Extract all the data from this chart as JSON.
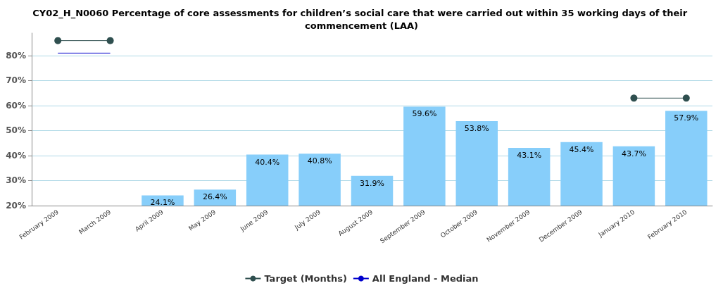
{
  "chart_data": {
    "type": "bar",
    "title": "CY02_H_N0060 Percentage of core assessments for children’s social care that were carried out within 35 working days of their commencement (LAA)",
    "categories": [
      "February 2009",
      "March 2009",
      "April 2009",
      "May 2009",
      "June 2009",
      "July 2009",
      "August 2009",
      "September 2009",
      "October 2009",
      "November 2009",
      "December 2009",
      "January 2010",
      "February 2010"
    ],
    "series": [
      {
        "color": "#87cefa",
        "values": [
          null,
          null,
          24.1,
          26.4,
          40.4,
          40.8,
          31.9,
          59.6,
          53.8,
          43.1,
          45.4,
          43.7,
          57.9
        ],
        "value_labels": [
          null,
          null,
          "24.1%",
          "26.4%",
          "40.4%",
          "40.8%",
          "31.9%",
          "59.6%",
          "53.8%",
          "43.1%",
          "45.4%",
          "43.7%",
          "57.9%"
        ]
      },
      {
        "type": "line",
        "name": "Target (Months)",
        "color": "#2f4f4f",
        "marker": "circle",
        "values": [
          86,
          86,
          null,
          null,
          null,
          null,
          null,
          null,
          null,
          null,
          null,
          63,
          63
        ]
      },
      {
        "type": "line",
        "name": "All England - Median",
        "color": "#0000cd",
        "marker": "none",
        "values": [
          81,
          81,
          null,
          null,
          null,
          null,
          null,
          null,
          null,
          null,
          null,
          null,
          null
        ]
      }
    ],
    "ylim": [
      20,
      89
    ],
    "yticks": [
      {
        "value": 20,
        "label": "20%"
      },
      {
        "value": 30,
        "label": "30%"
      },
      {
        "value": 40,
        "label": "40%"
      },
      {
        "value": 50,
        "label": "50%"
      },
      {
        "value": 60,
        "label": "60%"
      },
      {
        "value": 70,
        "label": "70%"
      },
      {
        "value": 80,
        "label": "80%"
      }
    ],
    "grid": "y",
    "legend": "bottom"
  }
}
